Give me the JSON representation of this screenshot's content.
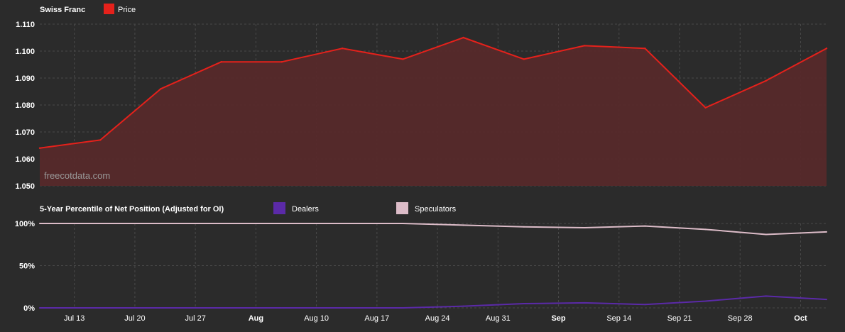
{
  "colors": {
    "background": "#2b2b2b",
    "grid": "#4a4a4a",
    "price_line": "#e5211b",
    "price_fill": "#56292a",
    "dealers": "#5b2aa8",
    "speculators": "#dcbcc8",
    "text": "#ffffff",
    "watermark": "#9a9a9a"
  },
  "watermark": "freecotdata.com",
  "chart_data": [
    {
      "type": "area",
      "title": "Swiss Franc",
      "legend": [
        {
          "name": "Price",
          "color": "#e5211b"
        }
      ],
      "ylim": [
        1.05,
        1.11
      ],
      "yticks": [
        "1.050",
        "1.060",
        "1.070",
        "1.080",
        "1.090",
        "1.100",
        "1.110"
      ],
      "grid": true,
      "x": [
        "Jul 9",
        "Jul 16",
        "Jul 23",
        "Jul 30",
        "Aug 6",
        "Aug 13",
        "Aug 20",
        "Aug 27",
        "Sep 3",
        "Sep 10",
        "Sep 17",
        "Sep 24",
        "Oct 1",
        "Oct 8"
      ],
      "series": [
        {
          "name": "Price",
          "values": [
            1.064,
            1.067,
            1.086,
            1.096,
            1.096,
            1.101,
            1.097,
            1.105,
            1.097,
            1.102,
            1.101,
            1.079,
            1.089,
            1.101
          ]
        }
      ]
    },
    {
      "type": "line",
      "title": "5-Year Percentile of Net Position (Adjusted for OI)",
      "legend": [
        {
          "name": "Dealers",
          "color": "#5b2aa8"
        },
        {
          "name": "Speculators",
          "color": "#dcbcc8"
        }
      ],
      "ylim": [
        0,
        100
      ],
      "yticks": [
        "0%",
        "50%",
        "100%"
      ],
      "grid": true,
      "x": [
        "Jul 9",
        "Jul 16",
        "Jul 23",
        "Jul 30",
        "Aug 6",
        "Aug 13",
        "Aug 20",
        "Aug 27",
        "Sep 3",
        "Sep 10",
        "Sep 17",
        "Sep 24",
        "Oct 1",
        "Oct 8"
      ],
      "series": [
        {
          "name": "Dealers",
          "values": [
            0,
            0,
            0,
            0,
            0,
            0,
            0,
            2,
            5,
            6,
            4,
            8,
            14,
            10
          ]
        },
        {
          "name": "Speculators",
          "values": [
            100,
            100,
            100,
            100,
            100,
            100,
            100,
            98,
            96,
            95,
            97,
            93,
            87,
            90
          ]
        }
      ]
    }
  ],
  "xaxis": {
    "ticks": [
      {
        "label": "Jul 13",
        "bold": false
      },
      {
        "label": "Jul 20",
        "bold": false
      },
      {
        "label": "Jul 27",
        "bold": false
      },
      {
        "label": "Aug",
        "bold": true
      },
      {
        "label": "Aug 10",
        "bold": false
      },
      {
        "label": "Aug 17",
        "bold": false
      },
      {
        "label": "Aug 24",
        "bold": false
      },
      {
        "label": "Aug 31",
        "bold": false
      },
      {
        "label": "Sep",
        "bold": true
      },
      {
        "label": "Sep 14",
        "bold": false
      },
      {
        "label": "Sep 21",
        "bold": false
      },
      {
        "label": "Sep 28",
        "bold": false
      },
      {
        "label": "Oct",
        "bold": true
      }
    ]
  }
}
